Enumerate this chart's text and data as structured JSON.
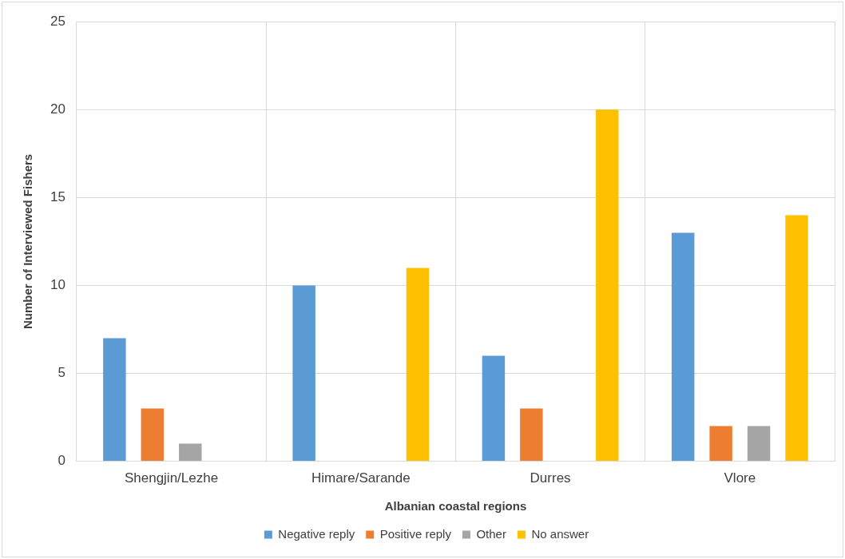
{
  "chart_data": {
    "type": "bar",
    "xlabel": "Albanian coastal regions",
    "ylabel": "Number of Interviewed Fishers",
    "categories": [
      "Shengjin/Lezhe",
      "Himare/Sarande",
      "Durres",
      "Vlore"
    ],
    "series": [
      {
        "name": "Negative reply",
        "color": "#5b9bd5",
        "values": [
          7,
          10,
          6,
          13
        ]
      },
      {
        "name": "Positive reply",
        "color": "#ed7d31",
        "values": [
          3,
          0,
          3,
          2
        ]
      },
      {
        "name": "Other",
        "color": "#a5a5a5",
        "values": [
          1,
          0,
          0,
          2
        ]
      },
      {
        "name": "No answer",
        "color": "#ffc000",
        "values": [
          0,
          11,
          20,
          14
        ]
      }
    ],
    "ylim": [
      0,
      25
    ],
    "yticks": [
      0,
      5,
      10,
      15,
      20,
      25
    ],
    "grid": true,
    "legend": "bottom"
  }
}
